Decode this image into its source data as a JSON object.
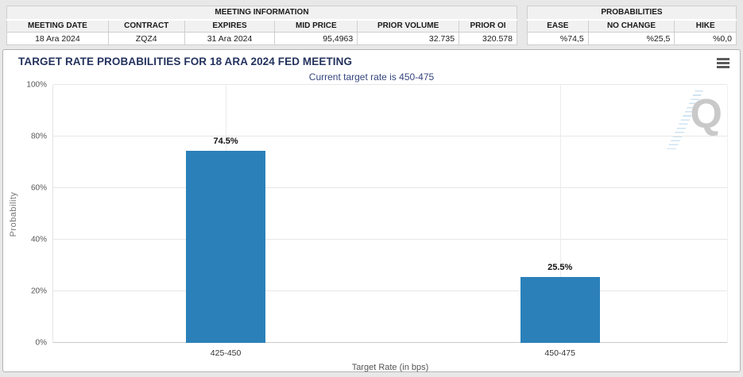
{
  "tables": {
    "meeting": {
      "title": "MEETING INFORMATION",
      "columns": [
        "MEETING DATE",
        "CONTRACT",
        "EXPIRES",
        "MID PRICE",
        "PRIOR VOLUME",
        "PRIOR OI"
      ],
      "row": [
        "18 Ara 2024",
        "ZQZ4",
        "31 Ara 2024",
        "95,4963",
        "32.735",
        "320.578"
      ]
    },
    "probabilities": {
      "title": "PROBABILITIES",
      "columns": [
        "EASE",
        "NO CHANGE",
        "HIKE"
      ],
      "row": [
        "%74,5",
        "%25,5",
        "%0,0"
      ]
    }
  },
  "chart": {
    "title": "TARGET RATE PROBABILITIES FOR 18 ARA 2024 FED MEETING",
    "subtitle": "Current target rate is 450-475",
    "watermark_letter": "Q"
  },
  "chart_data": {
    "type": "bar",
    "title": "TARGET RATE PROBABILITIES FOR 18 ARA 2024 FED MEETING",
    "subtitle": "Current target rate is 450-475",
    "categories": [
      "425-450",
      "450-475"
    ],
    "values": [
      74.5,
      25.5
    ],
    "value_labels": [
      "74.5%",
      "25.5%"
    ],
    "xlabel": "Target Rate (in bps)",
    "ylabel": "Probability",
    "ylim": [
      0,
      100
    ],
    "yticks": [
      0,
      20,
      40,
      60,
      80,
      100
    ],
    "ytick_labels": [
      "0%",
      "20%",
      "40%",
      "60%",
      "80%",
      "100%"
    ],
    "grid": true,
    "legend": false,
    "bar_color": "#2b80b9",
    "category_centers_pct": [
      25.6,
      75.2
    ]
  },
  "colors": {
    "bar": "#2b80b9",
    "title": "#24335e",
    "subtitle": "#36467e",
    "header_bg": "#f1f1f1",
    "panel_border": "#b4b4b4",
    "page_bg": "#e8e8e8"
  }
}
